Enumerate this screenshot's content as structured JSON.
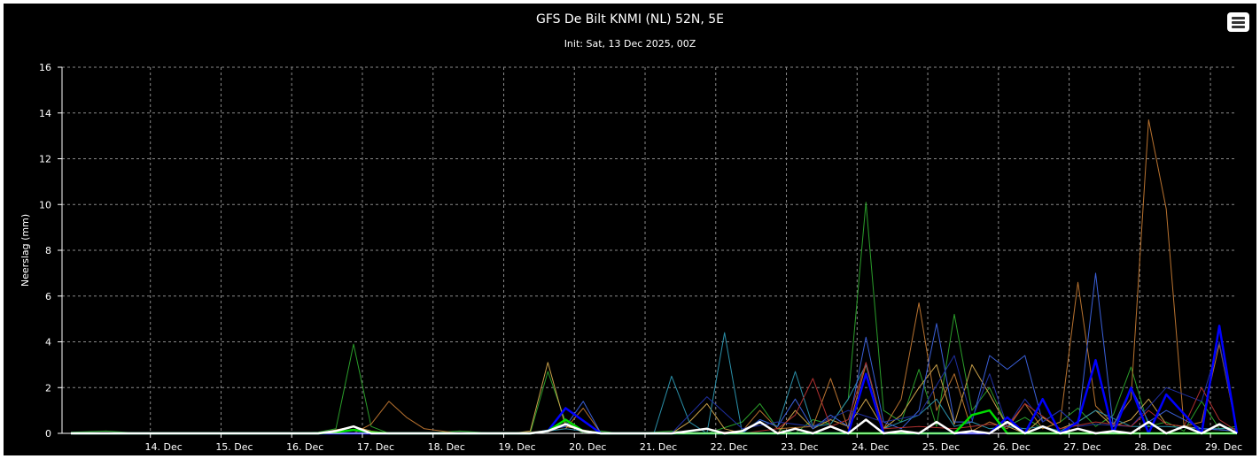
{
  "chart_data": {
    "type": "line",
    "title": "GFS De Bilt KNMI (NL) 52N, 5E",
    "subtitle": "Init: Sat, 13 Dec 2025, 00Z",
    "ylabel": "Neerslag (mm)",
    "ylim": [
      0,
      16
    ],
    "yticks": [
      "0",
      "2",
      "4",
      "6",
      "8",
      "10",
      "12",
      "14",
      "16"
    ],
    "xlim": [
      -0.625,
      16.0
    ],
    "x_ticks": [
      {
        "day": 0.625,
        "label": "14. Dec"
      },
      {
        "day": 1.625,
        "label": "15. Dec"
      },
      {
        "day": 2.625,
        "label": "16. Dec"
      },
      {
        "day": 3.625,
        "label": "17. Dec"
      },
      {
        "day": 4.625,
        "label": "18. Dec"
      },
      {
        "day": 5.625,
        "label": "19. Dec"
      },
      {
        "day": 6.625,
        "label": "20. Dec"
      },
      {
        "day": 7.625,
        "label": "21. Dec"
      },
      {
        "day": 8.625,
        "label": "22. Dec"
      },
      {
        "day": 9.625,
        "label": "23. Dec"
      },
      {
        "day": 10.625,
        "label": "24. Dec"
      },
      {
        "day": 11.625,
        "label": "25. Dec"
      },
      {
        "day": 12.625,
        "label": "26. Dec"
      },
      {
        "day": 13.625,
        "label": "27. Dec"
      },
      {
        "day": 14.625,
        "label": "28. Dec"
      },
      {
        "day": 15.625,
        "label": "29. Dec"
      }
    ],
    "grid": true,
    "legend": "none",
    "series": [
      {
        "color": "#2a9d2a",
        "width": 1,
        "x": [
          -0.5,
          0.0,
          0.5,
          1.0,
          2.5,
          3.0,
          3.25,
          3.5,
          3.75,
          4.0,
          4.5,
          5.0,
          5.5,
          6.0,
          6.25,
          6.5,
          6.75,
          7.0,
          7.25,
          7.5,
          8.0,
          8.5,
          9.0,
          9.25,
          9.5,
          9.75,
          10.0,
          10.25,
          10.5,
          10.75,
          11.0,
          11.25,
          11.5,
          11.75,
          12.0,
          12.25,
          12.5,
          12.75,
          13.0,
          13.25,
          13.5,
          13.75,
          14.0,
          14.25,
          14.5,
          14.75,
          15.0,
          15.25,
          15.5,
          15.75,
          16.0
        ],
        "y": [
          0.05,
          0.1,
          0,
          0,
          0,
          0.05,
          0.2,
          3.9,
          0.3,
          0,
          0,
          0.1,
          0,
          0,
          2.7,
          0.5,
          0,
          0.1,
          0,
          0,
          0.1,
          0,
          0.5,
          1.3,
          0.2,
          0,
          0.6,
          0.4,
          1.5,
          10.1,
          1.0,
          0.5,
          2.8,
          0.3,
          5.2,
          1.0,
          2.0,
          0.3,
          0.7,
          0.2,
          0.5,
          1.1,
          0.3,
          0.8,
          2.9,
          0.3,
          0.5,
          0.1,
          1.4,
          0.2,
          0.3
        ]
      },
      {
        "color": "#b8722f",
        "width": 1,
        "x": [
          -0.5,
          2.5,
          3.5,
          3.75,
          4.0,
          4.25,
          4.5,
          5.0,
          6.0,
          6.5,
          6.75,
          7.0,
          8.0,
          8.5,
          9.0,
          9.25,
          9.5,
          10.0,
          10.25,
          10.5,
          10.75,
          11.0,
          11.25,
          11.5,
          11.75,
          12.0,
          12.25,
          12.5,
          12.75,
          13.0,
          13.25,
          13.5,
          13.75,
          14.0,
          14.25,
          14.5,
          14.75,
          15.0,
          15.25,
          15.5,
          15.75,
          16.0
        ],
        "y": [
          0,
          0,
          0,
          0.4,
          1.4,
          0.7,
          0.2,
          0,
          0.05,
          0.2,
          1.1,
          0,
          0,
          0,
          0.1,
          1.0,
          0.2,
          0.3,
          2.4,
          0.2,
          3.0,
          0.2,
          1.5,
          5.7,
          1.0,
          2.6,
          0.1,
          0.5,
          0.2,
          1.3,
          0.2,
          0.5,
          6.6,
          1.2,
          0.4,
          1.5,
          13.7,
          9.8,
          0.3,
          0.5,
          3.9,
          0.1
        ]
      },
      {
        "color": "#c9a04a",
        "width": 1,
        "x": [
          -0.5,
          3.0,
          3.5,
          3.75,
          4.0,
          5.0,
          5.75,
          6.0,
          6.25,
          6.5,
          7.0,
          7.5,
          8.0,
          8.25,
          8.5,
          8.75,
          9.0,
          9.5,
          9.75,
          10.0,
          10.25,
          10.5,
          10.75,
          11.0,
          11.25,
          11.5,
          11.75,
          12.0,
          12.25,
          12.5,
          12.75,
          13.0,
          13.25,
          13.5,
          13.75,
          14.0,
          14.25,
          14.5,
          14.75,
          15.0,
          15.5,
          16.0
        ],
        "y": [
          0,
          0,
          0.3,
          0.1,
          0,
          0,
          0,
          0.1,
          3.1,
          0.3,
          0,
          0,
          0,
          0.5,
          1.3,
          0.2,
          0,
          0,
          1.0,
          0.2,
          0.6,
          0.3,
          1.5,
          0.2,
          0.8,
          2.0,
          3.0,
          0.4,
          3.0,
          1.7,
          0.3,
          0,
          0.7,
          0.2,
          0.5,
          1.0,
          0.3,
          0.6,
          1.5,
          0.4,
          0.2,
          0.1
        ]
      },
      {
        "color": "#2a8fa8",
        "width": 1,
        "x": [
          -0.5,
          3.0,
          5.0,
          6.0,
          6.5,
          7.0,
          7.75,
          8.0,
          8.25,
          8.5,
          8.75,
          9.0,
          9.25,
          9.5,
          9.75,
          10.0,
          10.25,
          10.5,
          10.75,
          11.0,
          11.25,
          11.5,
          11.75,
          12.0,
          12.25,
          12.5,
          12.75,
          13.0,
          13.25,
          13.5,
          13.75,
          14.0,
          14.5,
          15.0,
          15.5,
          16.0
        ],
        "y": [
          0,
          0,
          0,
          0,
          0.2,
          0,
          0,
          2.5,
          0.5,
          0,
          4.4,
          0,
          0.6,
          0.3,
          2.7,
          0.3,
          0.4,
          1.5,
          3.0,
          0.2,
          0.5,
          0.8,
          1.5,
          0.3,
          0.5,
          0.2,
          0.3,
          0.2,
          0.3,
          0.1,
          0.5,
          1.0,
          0.3,
          0.3,
          0.2,
          0.2
        ]
      },
      {
        "color": "#3a5fd8",
        "width": 1,
        "x": [
          -0.5,
          6.0,
          6.5,
          6.75,
          7.0,
          9.0,
          9.25,
          9.5,
          9.75,
          10.0,
          10.25,
          10.5,
          10.75,
          11.0,
          11.25,
          11.5,
          11.75,
          12.0,
          12.25,
          12.5,
          12.75,
          13.0,
          13.25,
          13.5,
          13.75,
          14.0,
          14.25,
          14.5,
          14.75,
          15.0,
          15.5,
          16.0
        ],
        "y": [
          0,
          0,
          0.3,
          1.4,
          0,
          0,
          0.6,
          0.3,
          1.5,
          0.2,
          0.8,
          0.3,
          4.2,
          0.5,
          0.2,
          1.0,
          4.8,
          0.5,
          0.5,
          3.4,
          2.8,
          3.4,
          0.5,
          1.0,
          0.3,
          7.0,
          0.3,
          2.0,
          0.5,
          1.0,
          0.2,
          0.1
        ]
      },
      {
        "color": "#1f2fa0",
        "width": 1,
        "x": [
          -0.5,
          8.0,
          8.5,
          9.0,
          9.5,
          10.0,
          10.5,
          11.0,
          11.5,
          12.0,
          12.25,
          12.5,
          12.75,
          13.0,
          13.25,
          13.5,
          13.75,
          14.0,
          14.5,
          15.0,
          15.5,
          15.75,
          16.0
        ],
        "y": [
          0,
          0,
          1.6,
          0.2,
          0.5,
          0.3,
          1.0,
          0.5,
          0.8,
          3.4,
          0.6,
          2.6,
          0.3,
          1.5,
          0.5,
          1.0,
          0.3,
          0.4,
          0.3,
          2.0,
          1.4,
          4.0,
          0.1
        ]
      },
      {
        "color": "#b03030",
        "width": 1,
        "x": [
          -0.5,
          9.0,
          9.5,
          9.75,
          10.0,
          10.25,
          10.5,
          10.75,
          11.0,
          11.5,
          12.0,
          12.5,
          12.75,
          13.0,
          13.5,
          14.0,
          14.5,
          14.75,
          15.0,
          15.25,
          15.5,
          15.75,
          16.0
        ],
        "y": [
          0,
          0,
          0.2,
          0.8,
          2.4,
          0.3,
          0.6,
          3.1,
          0.2,
          0.3,
          0.2,
          0.4,
          0.3,
          1.3,
          0.2,
          0.5,
          0.3,
          1.0,
          0.4,
          0.3,
          2.0,
          0.6,
          0.1
        ]
      },
      {
        "color": "#0000ff",
        "width": 2.5,
        "x": [
          -0.5,
          6.0,
          6.25,
          6.5,
          7.0,
          9.0,
          10.0,
          10.5,
          10.75,
          11.0,
          11.5,
          12.0,
          12.5,
          12.75,
          13.0,
          13.25,
          13.5,
          13.75,
          14.0,
          14.25,
          14.5,
          14.75,
          15.0,
          15.5,
          15.75,
          16.0
        ],
        "y": [
          0,
          0,
          0.1,
          1.1,
          0,
          0,
          0,
          0,
          2.6,
          0,
          0,
          0,
          0,
          0.7,
          0,
          1.5,
          0,
          0.5,
          3.2,
          0,
          2.0,
          0,
          1.7,
          0,
          4.7,
          0
        ]
      },
      {
        "color": "#00dd00",
        "width": 2.5,
        "x": [
          -0.5,
          3.0,
          3.25,
          3.5,
          3.75,
          4.0,
          5.5,
          6.0,
          6.25,
          6.5,
          6.75,
          7.0,
          7.5,
          8.0,
          12.0,
          12.25,
          12.5,
          12.75,
          13.0,
          16.0
        ],
        "y": [
          0,
          0,
          0.05,
          0.15,
          0.05,
          0,
          0,
          0,
          0.1,
          0.6,
          0.1,
          0,
          0,
          0,
          0,
          0.8,
          1.0,
          0,
          0,
          0
        ]
      },
      {
        "color": "#ffffff",
        "width": 2.5,
        "x": [
          -0.5,
          3.0,
          3.25,
          3.5,
          3.75,
          4.0,
          6.0,
          6.25,
          6.5,
          6.75,
          7.0,
          8.0,
          8.25,
          8.5,
          8.75,
          9.0,
          9.25,
          9.5,
          9.75,
          10.0,
          10.25,
          10.5,
          10.75,
          11.0,
          11.25,
          11.5,
          11.75,
          12.0,
          12.25,
          12.5,
          12.75,
          13.0,
          13.25,
          13.5,
          13.75,
          14.0,
          14.25,
          14.5,
          14.75,
          15.0,
          15.25,
          15.5,
          15.75,
          16.0
        ],
        "y": [
          0,
          0,
          0.1,
          0.3,
          0,
          0,
          0,
          0.1,
          0.4,
          0.1,
          0,
          0,
          0.1,
          0.2,
          0,
          0.1,
          0.5,
          0,
          0.2,
          0,
          0.3,
          0,
          0.6,
          0,
          0.1,
          0,
          0.5,
          0,
          0.1,
          0,
          0.5,
          0,
          0.3,
          0,
          0.2,
          0,
          0.1,
          0,
          0.5,
          0,
          0.3,
          0,
          0.4,
          0
        ]
      }
    ]
  },
  "toolbar": {
    "menu_icon": "hamburger-icon"
  }
}
